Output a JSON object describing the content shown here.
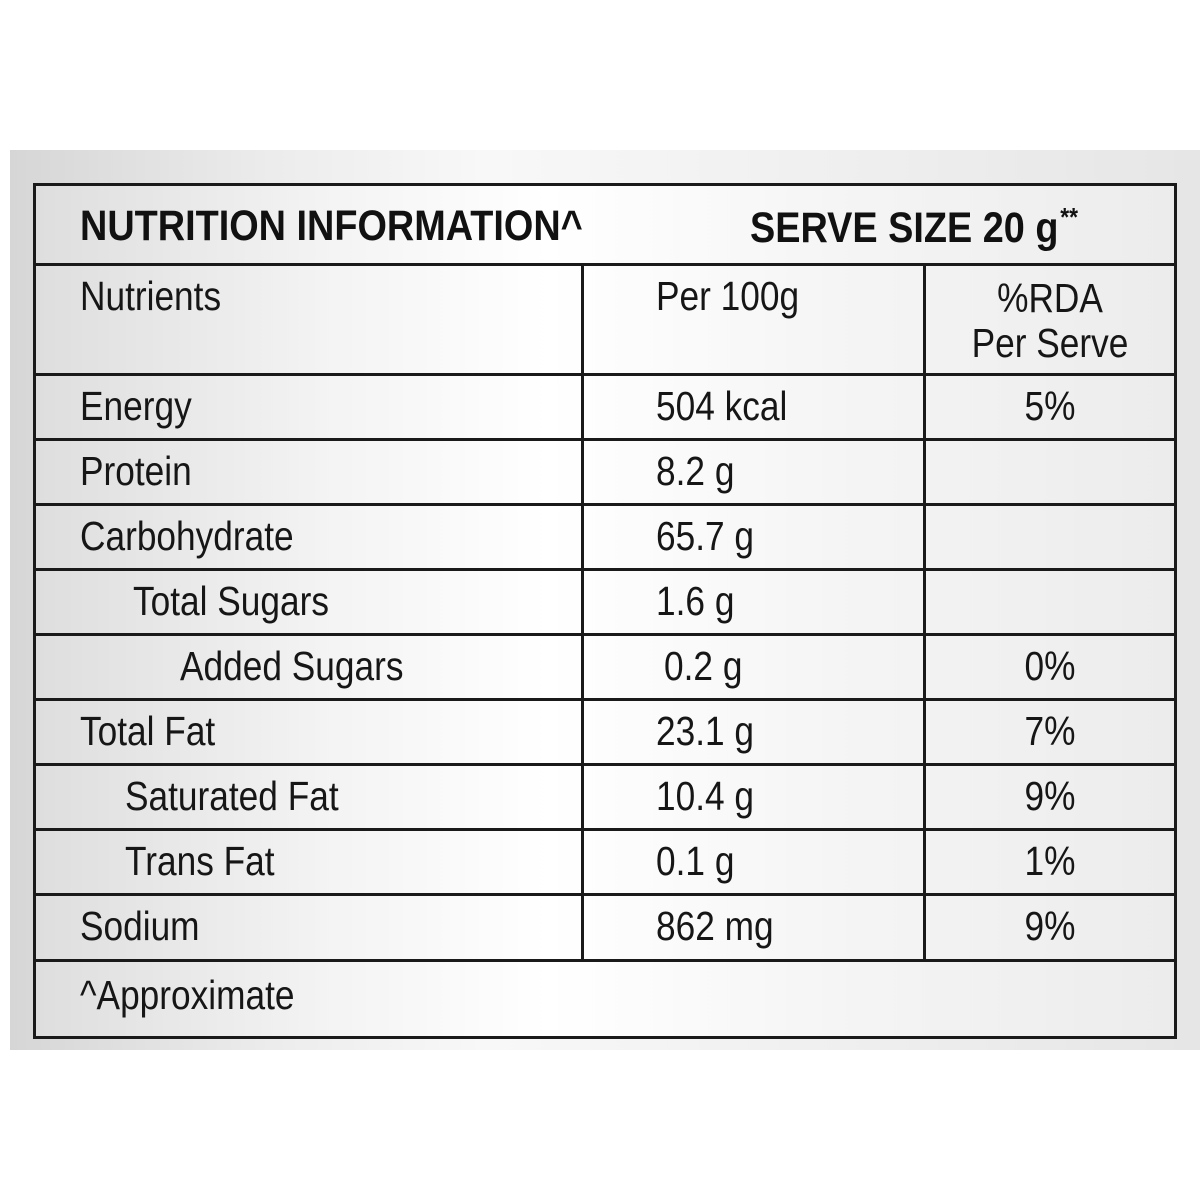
{
  "title": {
    "left": "NUTRITION INFORMATION^",
    "right": "SERVE SIZE 20 g",
    "right_sup": "**"
  },
  "header": {
    "nutrients": "Nutrients",
    "per100": "Per 100g",
    "rda_line1": "%RDA",
    "rda_line2": "Per Serve"
  },
  "rows": [
    {
      "name": "Energy",
      "per100": "504 kcal",
      "rda": "5%"
    },
    {
      "name": "Protein",
      "per100": "8.2 g",
      "rda": ""
    },
    {
      "name": "Carbohydrate",
      "per100": "65.7 g",
      "rda": ""
    },
    {
      "name": "Total Sugars",
      "per100": "1.6 g",
      "rda": ""
    },
    {
      "name": "Added Sugars",
      "per100": "0.2 g",
      "rda": "0%"
    },
    {
      "name": "Total Fat",
      "per100": "23.1 g",
      "rda": "7%"
    },
    {
      "name": "Saturated Fat",
      "per100": "10.4 g",
      "rda": "9%"
    },
    {
      "name": "Trans Fat",
      "per100": "0.1 g",
      "rda": "1%"
    },
    {
      "name": "Sodium",
      "per100": "862 mg",
      "rda": "9%"
    }
  ],
  "footer": "^Approximate"
}
